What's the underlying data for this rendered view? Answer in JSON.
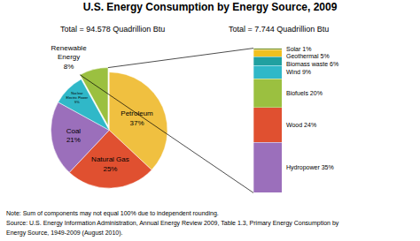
{
  "chart_data": [
    {
      "type": "pie",
      "title": "U.S. Energy Consumption by Energy Source, 2009",
      "subtitle": "Total = 94.578 Quadrillion Btu",
      "categories": [
        "Petroleum\n37%",
        "Natural Gas\n25%",
        "Coal\n21%",
        "Nuclear\nElectric Power\n9%",
        "Renewable\nEnergy\n8%"
      ],
      "values": [
        37,
        25,
        21,
        9,
        8
      ],
      "colors": [
        "#F0C040",
        "#E05030",
        "#9B6FBB",
        "#30B8C8",
        "#9BC040"
      ],
      "annotations": [
        "Note: Sum of components may not equal 100% due to independent rounding.",
        "Source: U.S. Energy Information Administration, Annual Energy Review 2009, Table 1.3, Primary Energy Consumption by",
        "Energy Source, 1949-2009 (August 2010)."
      ]
    },
    {
      "type": "bar",
      "stacked": true,
      "subtitle": "Total = 7.744 Quadrillion Btu",
      "categories": [
        null
      ],
      "series": [
        {
          "name": "Hydropower 35%",
          "color": "#9B6FBB",
          "values": [
            35
          ]
        },
        {
          "name": "Wood 24%",
          "color": "#E05030",
          "values": [
            24
          ]
        },
        {
          "name": "Biofuels 20%",
          "color": "#9BC040",
          "values": [
            20
          ]
        },
        {
          "name": "Wind 9%",
          "color": "#30B8C8",
          "values": [
            9
          ]
        },
        {
          "name": "Biomass waste 6%",
          "color": "#20A0A0",
          "values": [
            6
          ]
        },
        {
          "name": "Geothermal 5%",
          "color": "#F0C020",
          "values": [
            5
          ]
        },
        {
          "name": "Solar 1%",
          "color": "#6B8B1A",
          "values": [
            1
          ]
        }
      ],
      "ylim": [
        0,
        100
      ],
      "tick_labels": false
    }
  ]
}
